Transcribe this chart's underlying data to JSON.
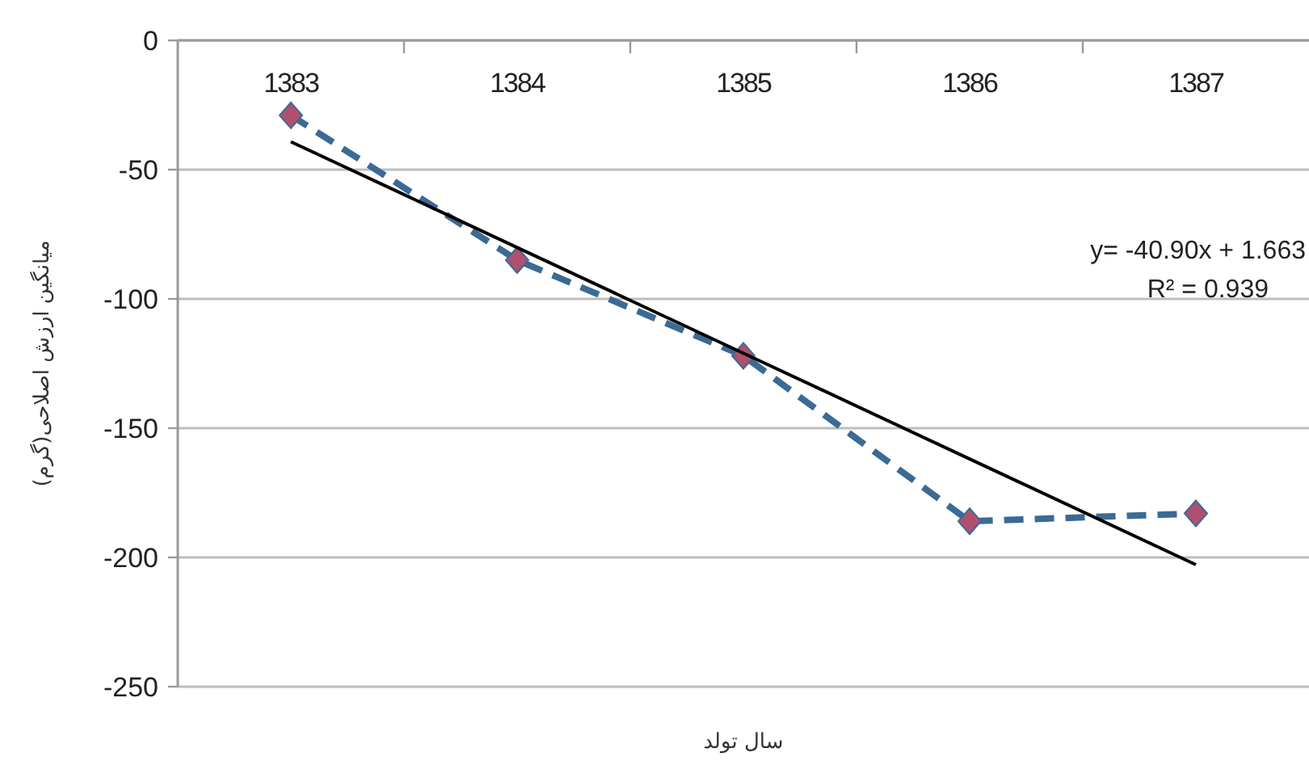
{
  "chart_data": {
    "type": "line",
    "xlabel": "سال تولد",
    "ylabel": "میانگین ارزش اصلاحی(گرم)",
    "categories": [
      "1383",
      "1384",
      "1385",
      "1386",
      "1387"
    ],
    "series": [
      {
        "values": [
          -29,
          -85,
          -122,
          -186,
          -183
        ],
        "color": "#3b6a94",
        "marker": "diamond",
        "line_style": "dashed"
      },
      {
        "type": "line",
        "values": [
          -39.2,
          -80.1,
          -121.0,
          -161.9,
          -202.8
        ],
        "color": "#000000",
        "marker": "none",
        "line_style": "solid"
      }
    ],
    "ylim": [
      -250,
      0
    ],
    "yticks": [
      0,
      -50,
      -100,
      -150,
      -200,
      -250
    ],
    "grid": "y",
    "annotations": [
      "y= -40.90x + 1.663",
      "R² = 0.939"
    ]
  }
}
